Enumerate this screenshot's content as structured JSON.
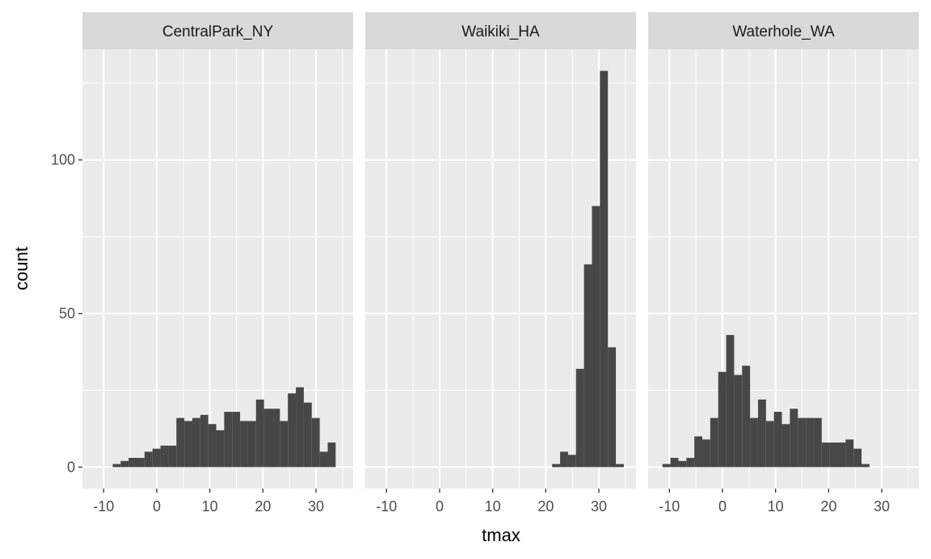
{
  "chart_data": {
    "type": "bar",
    "xlabel": "tmax",
    "ylabel": "count",
    "xlim": [
      -14,
      37
    ],
    "ylim": [
      -7,
      136
    ],
    "x_ticks": [
      -10,
      0,
      10,
      20,
      30
    ],
    "x_tick_labels": [
      "-10",
      "0",
      "10",
      "20",
      "30"
    ],
    "y_ticks": [
      0,
      50,
      100
    ],
    "y_tick_labels": [
      "0",
      "50",
      "100"
    ],
    "bin_width": 1.5,
    "grid": true,
    "colors": {
      "panel_background": "#ebebeb",
      "strip_background": "#d9d9d9",
      "grid": "#ffffff",
      "bar_fill": "#474747"
    },
    "panels": [
      {
        "name": "CentralPark_NY",
        "bins_x": [
          -8.3,
          -6.8,
          -5.3,
          -3.8,
          -2.3,
          -0.8,
          0.7,
          2.2,
          3.7,
          5.2,
          6.7,
          8.2,
          9.7,
          11.2,
          12.7,
          14.2,
          15.7,
          17.2,
          18.7,
          20.2,
          21.7,
          23.2,
          24.7,
          26.2,
          27.7,
          29.2,
          30.7,
          32.2,
          33.7
        ],
        "counts": [
          1,
          2,
          3,
          3,
          5,
          6,
          7,
          7,
          16,
          15,
          16,
          17,
          14,
          12,
          18,
          18,
          15,
          15,
          22,
          19,
          19,
          15,
          24,
          26,
          21,
          16,
          5,
          8
        ]
      },
      {
        "name": "Waikiki_HA",
        "bins_x": [
          21.2,
          22.7,
          24.2,
          25.7,
          27.2,
          28.7,
          30.2,
          31.7,
          33.2,
          34.7
        ],
        "counts": [
          1,
          5,
          4,
          32,
          66,
          85,
          129,
          39,
          1
        ]
      },
      {
        "name": "Waterhole_WA",
        "bins_x": [
          -11.3,
          -9.8,
          -8.3,
          -6.8,
          -5.3,
          -3.8,
          -2.3,
          -0.8,
          0.7,
          2.2,
          3.7,
          5.2,
          6.7,
          8.2,
          9.7,
          11.2,
          12.7,
          14.2,
          15.7,
          17.2,
          18.7,
          20.2,
          21.7,
          23.2,
          24.7,
          26.2,
          27.7
        ],
        "counts": [
          1,
          3,
          2,
          3,
          10,
          9,
          16,
          31,
          43,
          30,
          33,
          16,
          22,
          15,
          18,
          14,
          19,
          16,
          16,
          16,
          8,
          8,
          8,
          9,
          6,
          1
        ]
      }
    ]
  }
}
